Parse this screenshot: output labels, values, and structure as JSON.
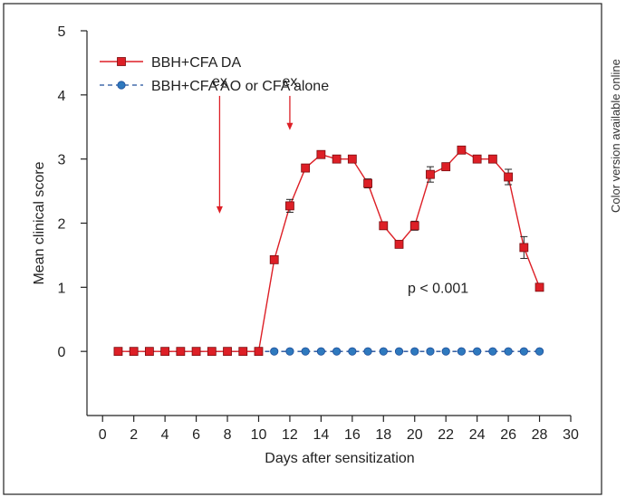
{
  "side_note": "Color version available online",
  "chart_data": {
    "type": "line",
    "title": "",
    "xlabel": "Days after sensitization",
    "ylabel": "Mean clinical score",
    "xlim": [
      -1,
      30
    ],
    "ylim": [
      -1,
      5
    ],
    "xticks": [
      0,
      2,
      4,
      6,
      8,
      10,
      12,
      14,
      16,
      18,
      20,
      22,
      24,
      26,
      28,
      30
    ],
    "yticks": [
      0,
      1,
      2,
      3,
      4,
      5
    ],
    "grid": false,
    "legend_position": "top-left",
    "series": [
      {
        "name": "BBH+CFA DA",
        "color": "#dd1f26",
        "marker": "square",
        "line_style": "solid",
        "x": [
          1,
          2,
          3,
          4,
          5,
          6,
          7,
          8,
          9,
          10,
          11,
          12,
          13,
          14,
          15,
          16,
          17,
          18,
          19,
          20,
          21,
          22,
          23,
          24,
          25,
          26,
          27,
          28
        ],
        "y": [
          0,
          0,
          0,
          0,
          0,
          0,
          0,
          0,
          0,
          0,
          1.43,
          2.27,
          2.86,
          3.07,
          3.0,
          3.0,
          2.62,
          1.96,
          1.67,
          1.96,
          2.76,
          2.88,
          3.14,
          3.0,
          3.0,
          2.72,
          1.62,
          1.0
        ],
        "err": [
          0,
          0,
          0,
          0,
          0,
          0,
          0,
          0,
          0,
          0,
          0.05,
          0.1,
          0.05,
          0.05,
          0.04,
          0.04,
          0.07,
          0.05,
          0.05,
          0.07,
          0.12,
          0.06,
          0.05,
          0.05,
          0.05,
          0.12,
          0.17,
          0.03
        ]
      },
      {
        "name": "BBH+CFA AO or CFA alone",
        "color": "#1f4e9a",
        "marker_fill": "#2e79be",
        "marker": "circle",
        "line_style": "dashed",
        "x": [
          1,
          2,
          3,
          4,
          5,
          6,
          7,
          8,
          9,
          10,
          11,
          12,
          13,
          14,
          15,
          16,
          17,
          18,
          19,
          20,
          21,
          22,
          23,
          24,
          25,
          26,
          27,
          28
        ],
        "y": [
          0,
          0,
          0,
          0,
          0,
          0,
          0,
          0,
          0,
          0,
          0,
          0,
          0,
          0,
          0,
          0,
          0,
          0,
          0,
          0,
          0,
          0,
          0,
          0,
          0,
          0,
          0,
          0
        ]
      }
    ],
    "annotations": [
      {
        "text": "ex",
        "x": 7.5,
        "arrow_from": 3.9,
        "arrow_to": 2.15
      },
      {
        "text": "ex",
        "x": 12.0,
        "arrow_from": 3.9,
        "arrow_to": 3.45
      },
      {
        "text": "p < 0.001",
        "x": 21.5,
        "y": 1.0
      }
    ]
  }
}
